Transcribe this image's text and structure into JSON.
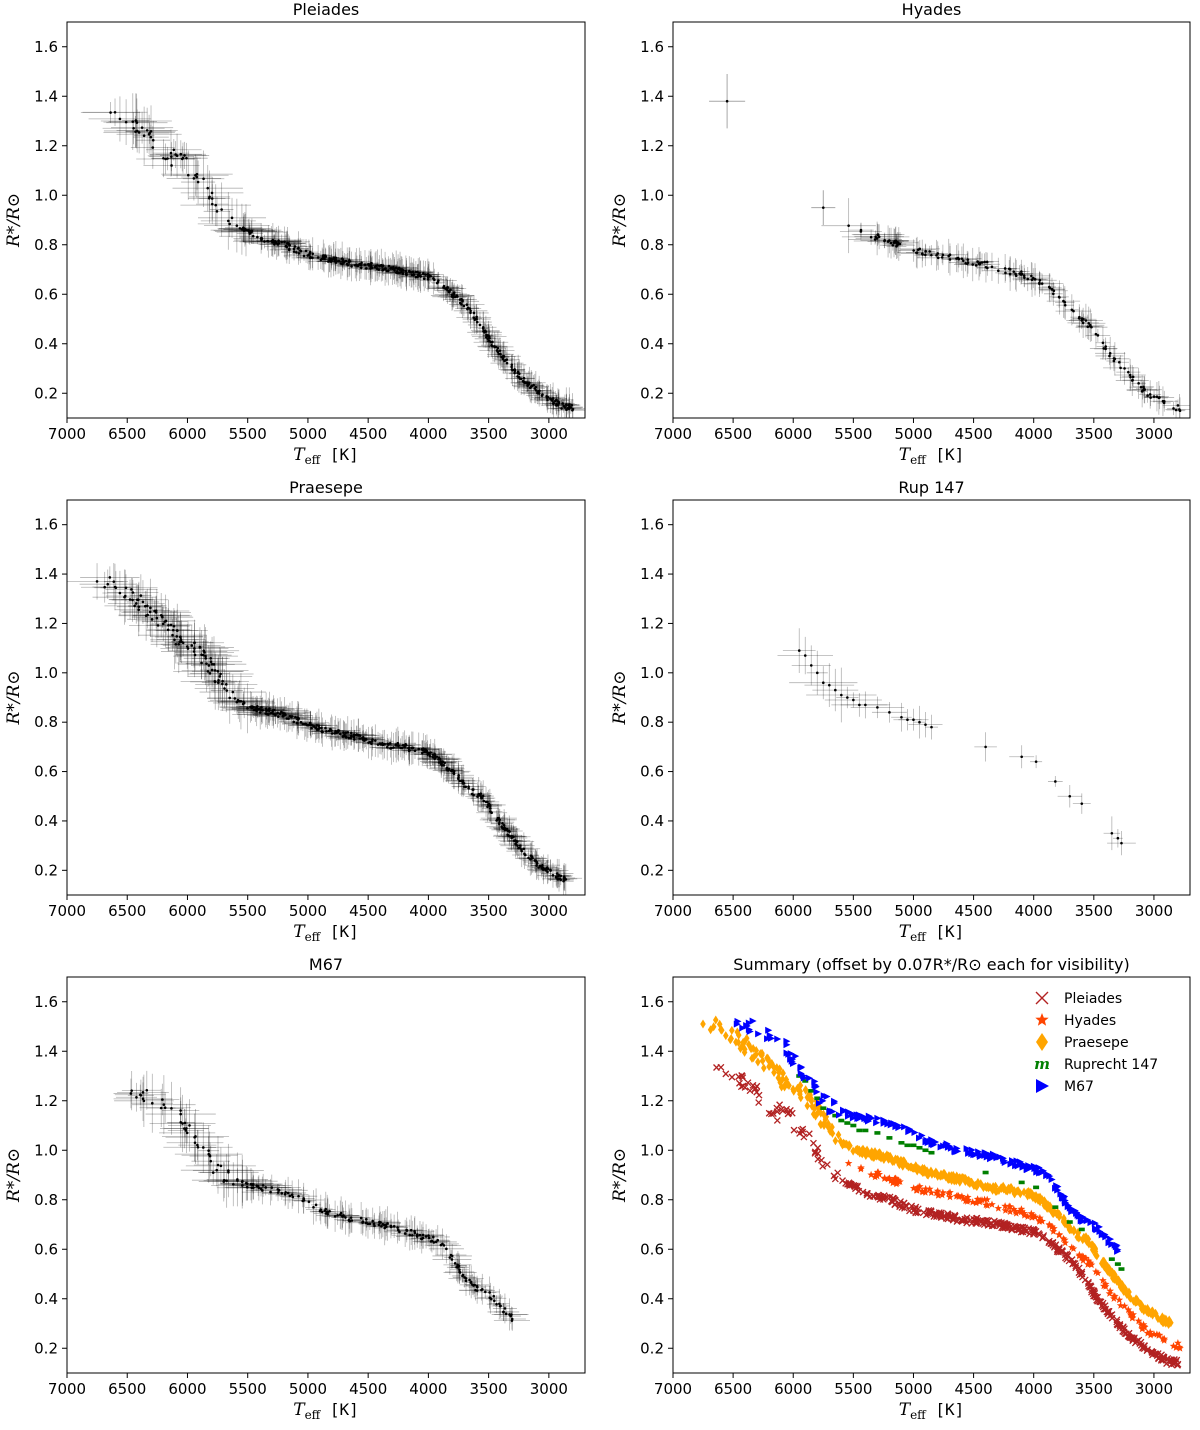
{
  "figure_title": "",
  "chart_data": [
    {
      "type": "scatter",
      "title": "Pleiades",
      "xlabel": "T_eff [K]",
      "ylabel": "R*/R⊙",
      "xlim": [
        7000,
        2700
      ],
      "ylim": [
        0.1,
        1.7
      ],
      "xticks": [
        7000,
        6500,
        6000,
        5500,
        5000,
        4500,
        4000,
        3500,
        3000
      ],
      "yticks": [
        0.2,
        0.4,
        0.6,
        0.8,
        1.0,
        1.2,
        1.4,
        1.6
      ],
      "error_bars": true,
      "trend": {
        "teff": [
          6650,
          6400,
          6150,
          6000,
          5900,
          5800,
          5700,
          5600,
          5400,
          5200,
          5000,
          4800,
          4600,
          4400,
          4200,
          4000,
          3900,
          3800,
          3700,
          3600,
          3500,
          3400,
          3300,
          3200,
          3100,
          3000,
          2900,
          2800
        ],
        "radius": [
          1.36,
          1.28,
          1.16,
          1.12,
          1.06,
          0.99,
          0.92,
          0.88,
          0.83,
          0.8,
          0.76,
          0.74,
          0.72,
          0.71,
          0.69,
          0.67,
          0.64,
          0.6,
          0.56,
          0.5,
          0.42,
          0.36,
          0.3,
          0.25,
          0.21,
          0.18,
          0.15,
          0.14
        ]
      },
      "x_span": [
        6650,
        2800
      ],
      "n_points": 420,
      "seed": 11
    },
    {
      "type": "scatter",
      "title": "Hyades",
      "xlabel": "T_eff [K]",
      "ylabel": "R*/R⊙",
      "xlim": [
        7000,
        2700
      ],
      "ylim": [
        0.1,
        1.7
      ],
      "xticks": [
        7000,
        6500,
        6000,
        5500,
        5000,
        4500,
        4000,
        3500,
        3000
      ],
      "yticks": [
        0.2,
        0.4,
        0.6,
        0.8,
        1.0,
        1.2,
        1.4,
        1.6
      ],
      "error_bars": true,
      "outliers": [
        {
          "teff": 6550,
          "radius": 1.38,
          "xerr": 150,
          "yerr": 0.11
        },
        {
          "teff": 5750,
          "radius": 0.95,
          "xerr": 100,
          "yerr": 0.07
        }
      ],
      "trend": {
        "teff": [
          5550,
          5300,
          5000,
          4700,
          4400,
          4100,
          3900,
          3750,
          3600,
          3500,
          3400,
          3300,
          3200,
          3100,
          3000,
          2900,
          2800
        ],
        "radius": [
          0.87,
          0.83,
          0.78,
          0.75,
          0.72,
          0.68,
          0.64,
          0.56,
          0.5,
          0.45,
          0.38,
          0.32,
          0.27,
          0.22,
          0.18,
          0.16,
          0.14
        ]
      },
      "x_span": [
        5550,
        2780
      ],
      "n_points": 160,
      "seed": 23
    },
    {
      "type": "scatter",
      "title": "Praesepe",
      "xlabel": "T_eff [K]",
      "ylabel": "R*/R⊙",
      "xlim": [
        7000,
        2700
      ],
      "ylim": [
        0.1,
        1.7
      ],
      "xticks": [
        7000,
        6500,
        6000,
        5500,
        5000,
        4500,
        4000,
        3500,
        3000
      ],
      "yticks": [
        0.2,
        0.4,
        0.6,
        0.8,
        1.0,
        1.2,
        1.4,
        1.6
      ],
      "error_bars": true,
      "trend": {
        "teff": [
          6800,
          6600,
          6300,
          6100,
          5900,
          5800,
          5700,
          5600,
          5400,
          5200,
          5000,
          4800,
          4600,
          4400,
          4200,
          4000,
          3800,
          3650,
          3550,
          3450,
          3350,
          3250,
          3150,
          3050,
          2950,
          2850
        ],
        "radius": [
          1.38,
          1.36,
          1.25,
          1.15,
          1.08,
          1.02,
          0.94,
          0.88,
          0.85,
          0.83,
          0.79,
          0.76,
          0.74,
          0.71,
          0.7,
          0.68,
          0.6,
          0.52,
          0.5,
          0.42,
          0.36,
          0.3,
          0.25,
          0.21,
          0.18,
          0.16
        ]
      },
      "x_span": [
        6800,
        2850
      ],
      "n_points": 460,
      "seed": 37
    },
    {
      "type": "scatter",
      "title": "Rup 147",
      "xlabel": "T_eff [K]",
      "ylabel": "R*/R⊙",
      "xlim": [
        7000,
        2700
      ],
      "ylim": [
        0.1,
        1.7
      ],
      "xticks": [
        7000,
        6500,
        6000,
        5500,
        5000,
        4500,
        4000,
        3500,
        3000
      ],
      "yticks": [
        0.2,
        0.4,
        0.6,
        0.8,
        1.0,
        1.2,
        1.4,
        1.6
      ],
      "error_bars": true,
      "points": [
        {
          "teff": 5950,
          "radius": 1.09
        },
        {
          "teff": 5900,
          "radius": 1.07
        },
        {
          "teff": 5850,
          "radius": 1.03
        },
        {
          "teff": 5800,
          "radius": 1.0
        },
        {
          "teff": 5750,
          "radius": 0.96
        },
        {
          "teff": 5700,
          "radius": 0.95
        },
        {
          "teff": 5650,
          "radius": 0.93
        },
        {
          "teff": 5600,
          "radius": 0.91
        },
        {
          "teff": 5550,
          "radius": 0.9
        },
        {
          "teff": 5500,
          "radius": 0.89
        },
        {
          "teff": 5450,
          "radius": 0.87
        },
        {
          "teff": 5400,
          "radius": 0.87
        },
        {
          "teff": 5300,
          "radius": 0.86
        },
        {
          "teff": 5200,
          "radius": 0.84
        },
        {
          "teff": 5100,
          "radius": 0.82
        },
        {
          "teff": 5050,
          "radius": 0.81
        },
        {
          "teff": 5000,
          "radius": 0.81
        },
        {
          "teff": 4950,
          "radius": 0.8
        },
        {
          "teff": 4900,
          "radius": 0.79
        },
        {
          "teff": 4850,
          "radius": 0.78
        },
        {
          "teff": 4400,
          "radius": 0.7
        },
        {
          "teff": 4100,
          "radius": 0.66
        },
        {
          "teff": 3980,
          "radius": 0.64
        },
        {
          "teff": 3820,
          "radius": 0.56
        },
        {
          "teff": 3700,
          "radius": 0.5
        },
        {
          "teff": 3600,
          "radius": 0.47
        },
        {
          "teff": 3350,
          "radius": 0.35
        },
        {
          "teff": 3300,
          "radius": 0.33
        },
        {
          "teff": 3270,
          "radius": 0.31
        }
      ],
      "seed": 41
    },
    {
      "type": "scatter",
      "title": "M67",
      "xlabel": "T_eff [K]",
      "ylabel": "R*/R⊙",
      "xlim": [
        7000,
        2700
      ],
      "ylim": [
        0.1,
        1.7
      ],
      "xticks": [
        7000,
        6500,
        6000,
        5500,
        5000,
        4500,
        4000,
        3500,
        3000
      ],
      "yticks": [
        0.2,
        0.4,
        0.6,
        0.8,
        1.0,
        1.2,
        1.4,
        1.6
      ],
      "error_bars": true,
      "trend": {
        "teff": [
          6550,
          6400,
          6250,
          6100,
          6000,
          5900,
          5800,
          5700,
          5500,
          5300,
          5100,
          4900,
          4700,
          4500,
          4300,
          4100,
          3900,
          3800,
          3700,
          3600,
          3500,
          3400,
          3300
        ],
        "radius": [
          1.23,
          1.22,
          1.2,
          1.15,
          1.1,
          1.02,
          0.95,
          0.9,
          0.86,
          0.84,
          0.81,
          0.76,
          0.73,
          0.71,
          0.69,
          0.66,
          0.63,
          0.56,
          0.49,
          0.44,
          0.42,
          0.37,
          0.32
        ]
      },
      "x_span": [
        6550,
        3300
      ],
      "n_points": 220,
      "seed": 53
    },
    {
      "type": "scatter",
      "title": "Summary (offset by 0.07R*/R⊙ each for visibility)",
      "xlabel": "T_eff [K]",
      "ylabel": "R*/R⊙",
      "xlim": [
        7000,
        2700
      ],
      "ylim": [
        0.1,
        1.7
      ],
      "xticks": [
        7000,
        6500,
        6000,
        5500,
        5000,
        4500,
        4000,
        3500,
        3000
      ],
      "yticks": [
        0.2,
        0.4,
        0.6,
        0.8,
        1.0,
        1.2,
        1.4,
        1.6
      ],
      "error_bars": false,
      "legend": "top-right",
      "series": [
        {
          "name": "Pleiades",
          "marker": "x",
          "color": "#b22222",
          "offset": 0.0,
          "source": 0
        },
        {
          "name": "Hyades",
          "marker": "star",
          "color": "#ff4500",
          "offset": 0.07,
          "source": 1
        },
        {
          "name": "Praesepe",
          "marker": "diamond",
          "color": "#ffa500",
          "offset": 0.14,
          "source": 2
        },
        {
          "name": "Ruprecht 147",
          "marker": "m",
          "color": "#008000",
          "offset": 0.21,
          "source": 3
        },
        {
          "name": "M67",
          "marker": "triangle-right",
          "color": "#0000ff",
          "offset": 0.28,
          "source": 4
        }
      ]
    }
  ]
}
